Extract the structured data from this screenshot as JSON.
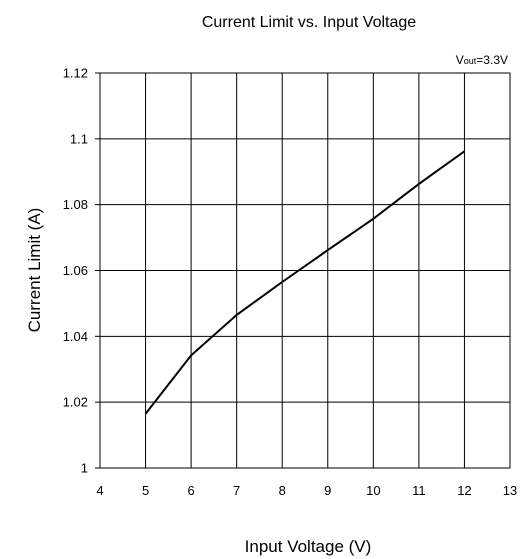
{
  "chart_data": {
    "type": "line",
    "title": "Current Limit vs. Input Voltage",
    "xlabel": "Input Voltage (V)",
    "ylabel": "Current Limit (A)",
    "xlim": [
      4,
      13
    ],
    "ylim": [
      1,
      1.12
    ],
    "xticks": [
      "4",
      "5",
      "6",
      "7",
      "8",
      "9",
      "10",
      "11",
      "12",
      "13"
    ],
    "yticks": [
      "1",
      "1.02",
      "1.04",
      "1.06",
      "1.08",
      "1.1",
      "1.12"
    ],
    "grid": true,
    "annotation": {
      "v": "V",
      "sub": "out",
      "rest": "=3.3V"
    },
    "series": [
      {
        "x": [
          5,
          6,
          7,
          8,
          9,
          10,
          11,
          12
        ],
        "y": [
          1.0165,
          1.0342,
          1.0465,
          1.0565,
          1.0662,
          1.0757,
          1.0863,
          1.0962
        ]
      }
    ]
  }
}
